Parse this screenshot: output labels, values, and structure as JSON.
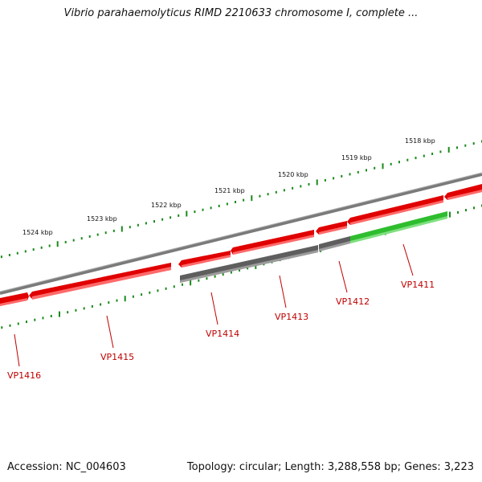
{
  "title": "Vibrio parahaemolyticus RIMD 2210633 chromosome I, complete ...",
  "footer": {
    "accession": "Accession: NC_004603",
    "topology": "Topology: circular; Length: 3,288,558 bp; Genes: 3,223"
  },
  "colors": {
    "forward_gene": "#e00000",
    "reverse_gene": "#ee1111",
    "pseudo_gene": "#606060",
    "highlight_gene": "#33cc33",
    "backbone": "#808080",
    "tick": "#1a8a1a",
    "label": "#c00000"
  },
  "scale_labels": [
    "1524 kbp",
    "1523 kbp",
    "1522 kbp",
    "1521 kbp",
    "1520 kbp",
    "1519 kbp",
    "1518 kbp"
  ],
  "genes": [
    {
      "id": "VP1416",
      "strand": "forward",
      "color": "red"
    },
    {
      "id": "VP1415",
      "strand": "forward",
      "color": "red"
    },
    {
      "id": "VP1414",
      "strand": "reverse",
      "color": "gray"
    },
    {
      "id": "VP1413",
      "strand": "reverse",
      "color": "gray"
    },
    {
      "id": "VP1412",
      "strand": "reverse",
      "color": "gray"
    },
    {
      "id": "VP1411",
      "strand": "reverse",
      "color": "green"
    }
  ]
}
